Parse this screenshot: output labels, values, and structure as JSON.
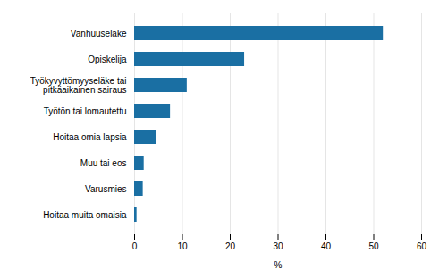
{
  "chart_data": {
    "type": "bar",
    "orientation": "horizontal",
    "categories": [
      "Hoitaa muita omaisia",
      "Varusmies",
      "Muu tai eos",
      "Hoitaa omia lapsia",
      "Työtön tai lomautettu",
      "Työkyvyttömyyseläke tai\npitkäaikainen sairaus",
      "Opiskelija",
      "Vanhuuseläke"
    ],
    "values": [
      0.5,
      1.8,
      2.0,
      4.5,
      7.5,
      11.0,
      23.0,
      52.0
    ],
    "color": "#1a6fa3",
    "xlim": [
      0,
      60
    ],
    "xticks": [
      0,
      10,
      20,
      30,
      40,
      50,
      60
    ],
    "xlabel": "%",
    "grid": true
  }
}
